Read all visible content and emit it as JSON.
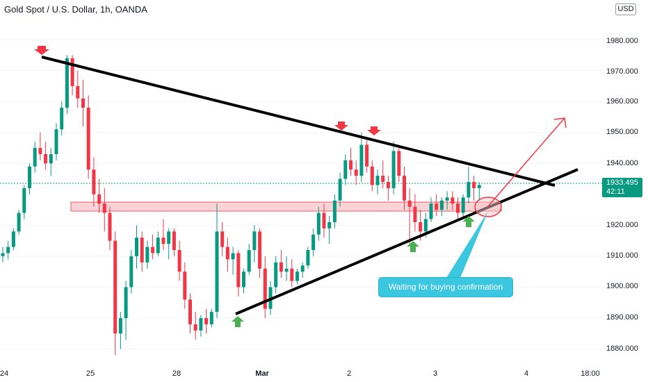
{
  "header": {
    "title": "Gold Spot / U.S. Dollar, 1h, OANDA"
  },
  "price_axis": {
    "currency": "USD",
    "ticks": [
      "1980.000",
      "1970.000",
      "1960.000",
      "1950.000",
      "1940.000",
      "1920.000",
      "1910.000",
      "1900.000",
      "1890.000",
      "1880.000"
    ]
  },
  "time_axis": {
    "ticks": [
      {
        "label": "24",
        "bold": false
      },
      {
        "label": "25",
        "bold": false
      },
      {
        "label": "28",
        "bold": false
      },
      {
        "label": "Mar",
        "bold": true
      },
      {
        "label": "2",
        "bold": false
      },
      {
        "label": "3",
        "bold": false
      },
      {
        "label": "4",
        "bold": false
      },
      {
        "label": "18:00",
        "bold": false
      }
    ]
  },
  "last_price": {
    "price": "1933.495",
    "countdown": "42:11",
    "color": "#089981"
  },
  "annotation": {
    "text": "Waiting for buying confirmation",
    "color": "#3bc7e0"
  },
  "colors": {
    "up": "#089981",
    "down": "#f23645",
    "trendline": "#000000",
    "zone": "#f7c6c9",
    "arrow": "#f23645",
    "signal_down": "#f23645",
    "signal_up": "#4caf50"
  },
  "chart_data": {
    "type": "candlestick",
    "symbol": "Gold Spot / U.S. Dollar",
    "interval": "1h",
    "source": "OANDA",
    "ylim": [
      1876,
      1991
    ],
    "candles": [
      [
        1910,
        1913,
        1908,
        1911
      ],
      [
        1911,
        1915,
        1909,
        1913
      ],
      [
        1913,
        1919,
        1912,
        1918
      ],
      [
        1918,
        1925,
        1917,
        1924
      ],
      [
        1924,
        1933,
        1922,
        1932
      ],
      [
        1932,
        1940,
        1930,
        1939
      ],
      [
        1939,
        1947,
        1937,
        1945
      ],
      [
        1945,
        1950,
        1941,
        1943
      ],
      [
        1943,
        1947,
        1938,
        1940
      ],
      [
        1940,
        1945,
        1936,
        1943
      ],
      [
        1943,
        1953,
        1941,
        1951
      ],
      [
        1951,
        1960,
        1949,
        1958
      ],
      [
        1958,
        1975,
        1956,
        1974
      ],
      [
        1974,
        1975,
        1962,
        1965
      ],
      [
        1965,
        1970,
        1958,
        1961
      ],
      [
        1961,
        1967,
        1952,
        1958
      ],
      [
        1958,
        1962,
        1935,
        1938
      ],
      [
        1938,
        1942,
        1926,
        1930
      ],
      [
        1930,
        1935,
        1924,
        1927
      ],
      [
        1927,
        1932,
        1918,
        1924
      ],
      [
        1924,
        1926,
        1912,
        1915
      ],
      [
        1915,
        1918,
        1878,
        1885
      ],
      [
        1885,
        1892,
        1880,
        1890
      ],
      [
        1890,
        1902,
        1883,
        1900
      ],
      [
        1900,
        1912,
        1898,
        1910
      ],
      [
        1910,
        1920,
        1906,
        1916
      ],
      [
        1916,
        1918,
        1905,
        1908
      ],
      [
        1908,
        1915,
        1906,
        1913
      ],
      [
        1913,
        1917,
        1909,
        1911
      ],
      [
        1911,
        1918,
        1910,
        1916
      ],
      [
        1916,
        1922,
        1912,
        1914
      ],
      [
        1914,
        1919,
        1909,
        1918
      ],
      [
        1918,
        1919,
        1910,
        1912
      ],
      [
        1912,
        1915,
        1902,
        1905
      ],
      [
        1905,
        1908,
        1893,
        1896
      ],
      [
        1896,
        1898,
        1885,
        1888
      ],
      [
        1888,
        1892,
        1883,
        1886
      ],
      [
        1886,
        1891,
        1884,
        1890
      ],
      [
        1890,
        1893,
        1885,
        1888
      ],
      [
        1888,
        1893,
        1887,
        1892
      ],
      [
        1892,
        1927,
        1890,
        1918
      ],
      [
        1918,
        1921,
        1910,
        1913
      ],
      [
        1913,
        1916,
        1905,
        1909
      ],
      [
        1909,
        1913,
        1904,
        1911
      ],
      [
        1911,
        1912,
        1897,
        1900
      ],
      [
        1900,
        1906,
        1898,
        1905
      ],
      [
        1905,
        1914,
        1904,
        1912
      ],
      [
        1912,
        1920,
        1908,
        1918
      ],
      [
        1918,
        1919,
        1903,
        1906
      ],
      [
        1906,
        1910,
        1890,
        1893
      ],
      [
        1893,
        1902,
        1891,
        1900
      ],
      [
        1900,
        1910,
        1898,
        1908
      ],
      [
        1908,
        1912,
        1903,
        1905
      ],
      [
        1905,
        1910,
        1902,
        1906
      ],
      [
        1906,
        1909,
        1900,
        1902
      ],
      [
        1902,
        1906,
        1901,
        1905
      ],
      [
        1905,
        1908,
        1903,
        1907
      ],
      [
        1907,
        1913,
        1906,
        1912
      ],
      [
        1912,
        1919,
        1910,
        1917
      ],
      [
        1917,
        1926,
        1915,
        1924
      ],
      [
        1924,
        1927,
        1916,
        1919
      ],
      [
        1919,
        1923,
        1914,
        1921
      ],
      [
        1921,
        1930,
        1919,
        1928
      ],
      [
        1928,
        1937,
        1926,
        1935
      ],
      [
        1935,
        1943,
        1933,
        1941
      ],
      [
        1941,
        1945,
        1936,
        1938
      ],
      [
        1938,
        1941,
        1933,
        1936
      ],
      [
        1936,
        1950,
        1934,
        1946
      ],
      [
        1946,
        1948,
        1937,
        1939
      ],
      [
        1939,
        1941,
        1931,
        1933
      ],
      [
        1933,
        1938,
        1930,
        1936
      ],
      [
        1936,
        1941,
        1932,
        1934
      ],
      [
        1934,
        1936,
        1928,
        1932
      ],
      [
        1932,
        1947,
        1930,
        1944
      ],
      [
        1944,
        1946,
        1934,
        1936
      ],
      [
        1936,
        1939,
        1925,
        1928
      ],
      [
        1928,
        1932,
        1914,
        1926
      ],
      [
        1926,
        1930,
        1918,
        1921
      ],
      [
        1921,
        1925,
        1915,
        1918
      ],
      [
        1918,
        1924,
        1916,
        1922
      ],
      [
        1922,
        1929,
        1921,
        1927
      ],
      [
        1927,
        1930,
        1923,
        1925
      ],
      [
        1925,
        1929,
        1923,
        1928
      ],
      [
        1928,
        1931,
        1925,
        1929
      ],
      [
        1929,
        1931,
        1925,
        1927
      ],
      [
        1927,
        1929,
        1922,
        1924
      ],
      [
        1924,
        1930,
        1922,
        1929
      ],
      [
        1929,
        1939,
        1927,
        1934
      ],
      [
        1934,
        1936,
        1928,
        1932
      ],
      [
        1932,
        1934,
        1928,
        1933
      ]
    ],
    "trendlines": [
      {
        "name": "resistance",
        "from": [
          0,
          1974.5
        ],
        "to": [
          98,
          1932.5
        ]
      },
      {
        "name": "support",
        "from": [
          44,
          1891.5
        ],
        "to": [
          110,
          1937.5
        ]
      }
    ],
    "zone": {
      "from_index": 12,
      "to_index": 90,
      "top": 1927.5,
      "bottom": 1924.5
    }
  }
}
